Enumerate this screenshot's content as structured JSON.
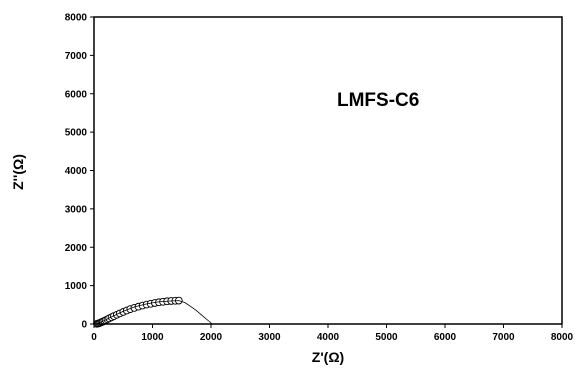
{
  "chart_data": {
    "type": "scatter",
    "title": "",
    "xlabel": "Z'(Ω)",
    "ylabel": "Z''(Ω)",
    "xlim": [
      0,
      8000
    ],
    "ylim": [
      0,
      8000
    ],
    "xticks": [
      "0",
      "1000",
      "2000",
      "3000",
      "4000",
      "5000",
      "6000",
      "7000",
      "8000"
    ],
    "yticks": [
      "0",
      "1000",
      "2000",
      "3000",
      "4000",
      "5000",
      "6000",
      "7000",
      "8000"
    ],
    "grid": false,
    "annotation": "LMFS-C6",
    "series": [
      {
        "kind": "points",
        "marker": "open-circle",
        "x": [
          50,
          70,
          90,
          110,
          130,
          150,
          175,
          200,
          230,
          260,
          300,
          340,
          390,
          440,
          500,
          560,
          620,
          690,
          760,
          830,
          900,
          970,
          1040,
          1110,
          1180,
          1250,
          1320,
          1390,
          1450
        ],
        "y": [
          5,
          12,
          22,
          34,
          48,
          62,
          80,
          100,
          122,
          146,
          175,
          205,
          240,
          275,
          315,
          352,
          388,
          420,
          452,
          480,
          506,
          528,
          548,
          566,
          580,
          592,
          600,
          606,
          610
        ]
      },
      {
        "kind": "fit-line",
        "x": [
          50,
          150,
          300,
          500,
          700,
          900,
          1100,
          1300,
          1450,
          1550,
          1650,
          1750,
          1850,
          1950,
          2020
        ],
        "y": [
          0,
          70,
          185,
          330,
          450,
          525,
          575,
          600,
          610,
          560,
          460,
          350,
          220,
          90,
          0
        ]
      }
    ]
  }
}
